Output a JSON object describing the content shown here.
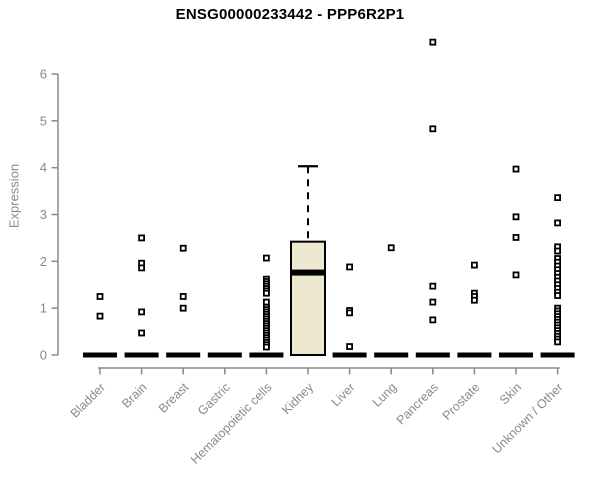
{
  "chart_data": {
    "type": "box",
    "title": "ENSG00000233442 - PPP6R2P1",
    "ylabel": "Expression",
    "xlabel": "",
    "ylim": [
      0,
      6.8
    ],
    "yticks": [
      0,
      1,
      2,
      3,
      4,
      5,
      6
    ],
    "grid": false,
    "legend": null,
    "categories": [
      "Bladder",
      "Brain",
      "Breast",
      "Gastric",
      "Hematopoietic cells",
      "Kidney",
      "Liver",
      "Lung",
      "Pancreas",
      "Prostate",
      "Skin",
      "Unknown / Other"
    ],
    "colors": {
      "box_fill": "#EDE8CF",
      "box_stroke": "#000000",
      "axis": "#8a8a8a",
      "marker": "#000000",
      "title": "#000000"
    },
    "series": [
      {
        "category": "Bladder",
        "box": {
          "q1": 0,
          "median": 0,
          "q3": 0,
          "whisker_low": 0,
          "whisker_high": 0
        },
        "outliers": [
          1.25,
          0.83
        ]
      },
      {
        "category": "Brain",
        "box": {
          "q1": 0,
          "median": 0,
          "q3": 0,
          "whisker_low": 0,
          "whisker_high": 0
        },
        "outliers": [
          2.5,
          1.96,
          1.86,
          0.92,
          0.47
        ]
      },
      {
        "category": "Breast",
        "box": {
          "q1": 0,
          "median": 0,
          "q3": 0,
          "whisker_low": 0,
          "whisker_high": 0
        },
        "outliers": [
          2.28,
          1.25,
          1.0
        ]
      },
      {
        "category": "Gastric",
        "box": {
          "q1": 0,
          "median": 0,
          "q3": 0,
          "whisker_low": 0,
          "whisker_high": 0
        },
        "outliers": []
      },
      {
        "category": "Hematopoietic cells",
        "box": {
          "q1": 0,
          "median": 0,
          "q3": 0,
          "whisker_low": 0,
          "whisker_high": 0
        },
        "outliers": [
          2.07,
          1.62,
          1.57,
          1.52,
          1.47,
          1.42,
          1.37,
          1.32,
          1.13,
          1.02,
          0.97,
          0.92,
          0.87,
          0.82,
          0.77,
          0.72,
          0.67,
          0.62,
          0.57,
          0.52,
          0.47,
          0.42,
          0.37,
          0.32,
          0.27,
          0.22,
          0.17
        ]
      },
      {
        "category": "Kidney",
        "box": {
          "q1": 0,
          "median": 1.76,
          "q3": 2.42,
          "whisker_low": 0,
          "whisker_high": 4.03
        },
        "outliers": []
      },
      {
        "category": "Liver",
        "box": {
          "q1": 0,
          "median": 0,
          "q3": 0,
          "whisker_low": 0,
          "whisker_high": 0
        },
        "outliers": [
          1.88,
          0.95,
          0.9,
          0.18
        ]
      },
      {
        "category": "Lung",
        "box": {
          "q1": 0,
          "median": 0,
          "q3": 0,
          "whisker_low": 0,
          "whisker_high": 0
        },
        "outliers": [
          2.29
        ]
      },
      {
        "category": "Pancreas",
        "box": {
          "q1": 0,
          "median": 0,
          "q3": 0,
          "whisker_low": 0,
          "whisker_high": 0
        },
        "outliers": [
          6.68,
          4.83,
          1.47,
          1.13,
          0.75
        ]
      },
      {
        "category": "Prostate",
        "box": {
          "q1": 0,
          "median": 0,
          "q3": 0,
          "whisker_low": 0,
          "whisker_high": 0
        },
        "outliers": [
          1.92,
          1.32,
          1.25,
          1.17
        ]
      },
      {
        "category": "Skin",
        "box": {
          "q1": 0,
          "median": 0,
          "q3": 0,
          "whisker_low": 0,
          "whisker_high": 0
        },
        "outliers": [
          3.97,
          2.95,
          2.51,
          1.71
        ]
      },
      {
        "category": "Unknown / Other",
        "box": {
          "q1": 0,
          "median": 0,
          "q3": 0,
          "whisker_low": 0,
          "whisker_high": 0
        },
        "outliers": [
          3.36,
          2.82,
          2.31,
          2.22,
          2.06,
          1.98,
          1.9,
          1.82,
          1.74,
          1.66,
          1.58,
          1.5,
          1.42,
          1.34,
          1.27,
          1.0,
          0.94,
          0.88,
          0.82,
          0.76,
          0.7,
          0.64,
          0.58,
          0.52,
          0.46,
          0.4,
          0.34,
          0.28
        ]
      }
    ]
  }
}
